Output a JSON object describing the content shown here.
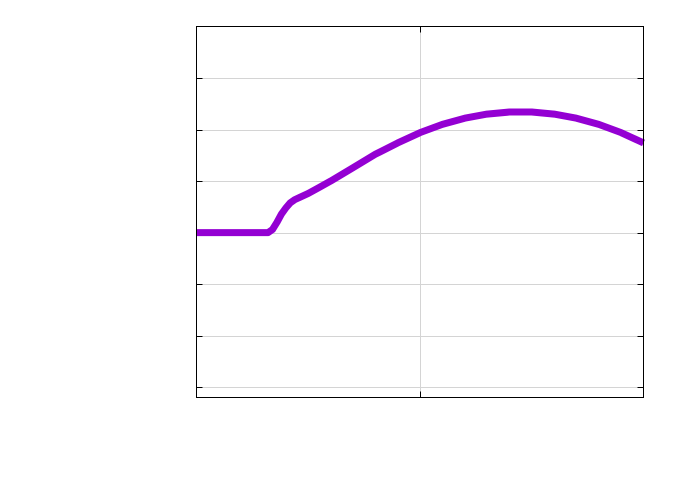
{
  "colors": {
    "series": "#9400d3",
    "grid": "#d4d4d4",
    "frame": "#000000",
    "background": "#ffffff"
  },
  "chart_data": {
    "type": "line",
    "title": "",
    "xlabel": "",
    "ylabel": "",
    "xlim": [
      0,
      2
    ],
    "ylim": [
      -0.1,
      3.5
    ],
    "grid": true,
    "legend": "none",
    "x_tick_values": [
      0,
      1,
      2
    ],
    "y_tick_values": [
      0,
      0.5,
      1,
      1.5,
      2,
      2.5,
      3
    ],
    "x_tick_labels": [],
    "y_tick_labels": [],
    "series": [
      {
        "x": [
          0,
          0.1,
          0.2,
          0.3,
          0.32,
          0.34,
          0.36,
          0.38,
          0.4,
          0.42,
          0.44,
          0.46,
          0.5,
          0.55,
          0.6,
          0.7,
          0.8,
          0.9,
          1.0,
          1.1,
          1.2,
          1.3,
          1.4,
          1.5,
          1.6,
          1.7,
          1.8,
          1.9,
          2.0
        ],
        "y": [
          1.5,
          1.5,
          1.5,
          1.5,
          1.5,
          1.53,
          1.6,
          1.68,
          1.74,
          1.79,
          1.82,
          1.84,
          1.88,
          1.94,
          2.0,
          2.13,
          2.26,
          2.37,
          2.47,
          2.55,
          2.61,
          2.65,
          2.67,
          2.67,
          2.65,
          2.61,
          2.55,
          2.47,
          2.37
        ]
      }
    ]
  }
}
